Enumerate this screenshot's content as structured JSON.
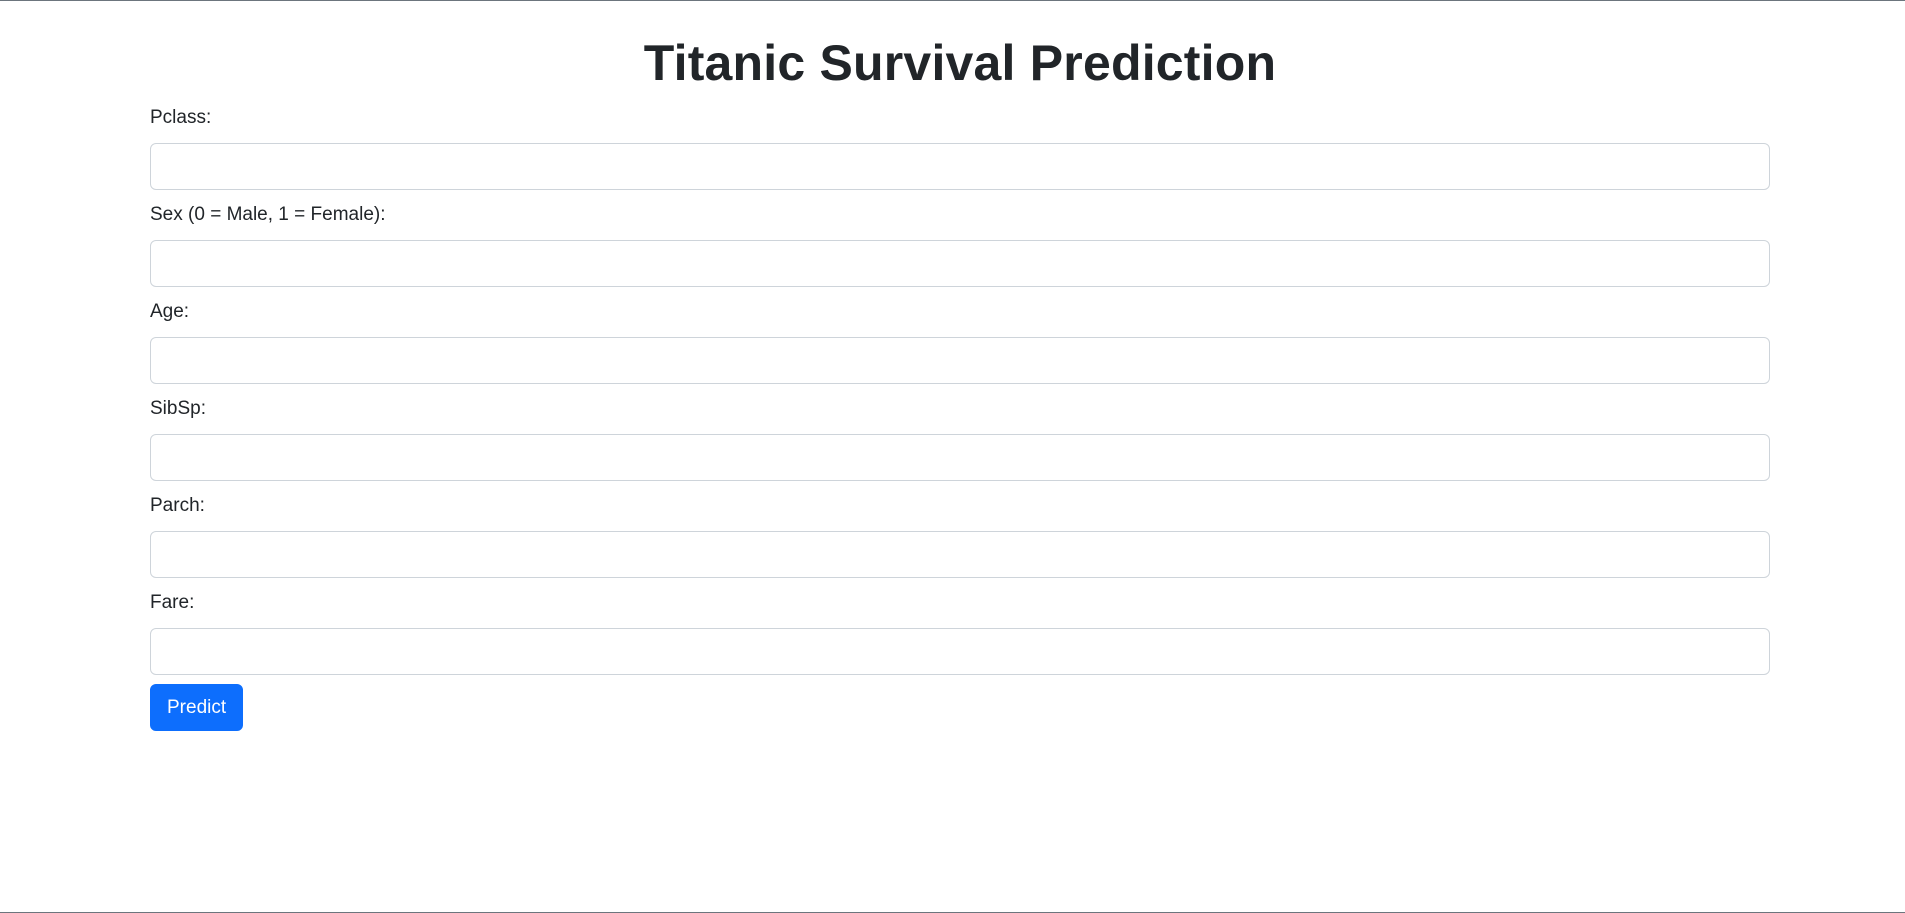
{
  "page": {
    "title": "Titanic Survival Prediction"
  },
  "form": {
    "fields": [
      {
        "label": "Pclass:",
        "value": "",
        "placeholder": ""
      },
      {
        "label": "Sex (0 = Male, 1 = Female):",
        "value": "",
        "placeholder": ""
      },
      {
        "label": "Age:",
        "value": "",
        "placeholder": ""
      },
      {
        "label": "SibSp:",
        "value": "",
        "placeholder": ""
      },
      {
        "label": "Parch:",
        "value": "",
        "placeholder": ""
      },
      {
        "label": "Fare:",
        "value": "",
        "placeholder": ""
      }
    ],
    "submit_label": "Predict"
  },
  "colors": {
    "primary": "#0d6efd",
    "text": "#212529",
    "input_border": "#ced4da"
  }
}
